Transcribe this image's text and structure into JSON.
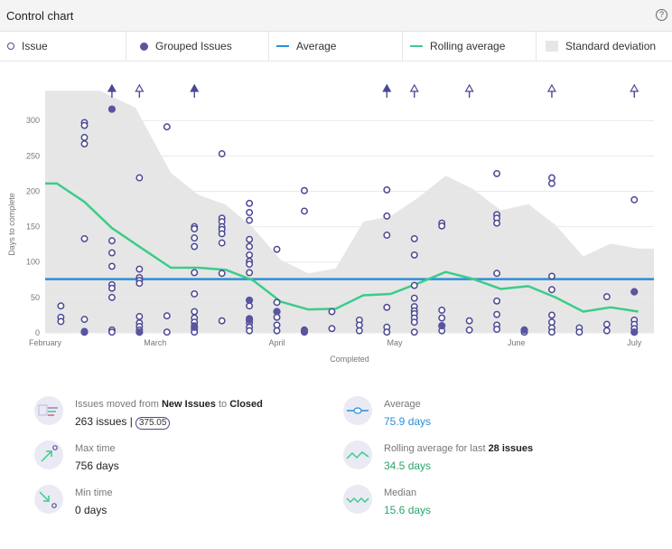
{
  "header": {
    "title": "Control chart",
    "help_icon": "?"
  },
  "legend": {
    "issue": "Issue",
    "grouped": "Grouped Issues",
    "average": "Average",
    "rolling": "Rolling average",
    "std": "Standard deviation"
  },
  "colors": {
    "issue": "#4a4894",
    "grouped": "#5a55a0",
    "average": "#2b8fd8",
    "rolling": "#3ccc8a",
    "std_band": "#e6e6e6",
    "grid": "#e9e9e9"
  },
  "chart_data": {
    "type": "scatter",
    "xlabel": "Completed",
    "ylabel": "Days to complete",
    "ylim": [
      0,
      345
    ],
    "yticks": [
      0,
      50,
      100,
      150,
      200,
      250,
      300
    ],
    "xlim": [
      0,
      155
    ],
    "x_unit": "days since Feb 1",
    "xticks": [
      {
        "label": "February",
        "x": 0
      },
      {
        "label": "March",
        "x": 28
      },
      {
        "label": "April",
        "x": 59
      },
      {
        "label": "May",
        "x": 89
      },
      {
        "label": "June",
        "x": 120
      },
      {
        "label": "July",
        "x": 150
      }
    ],
    "average": 75.9,
    "rolling_average": [
      [
        0,
        211
      ],
      [
        3,
        211
      ],
      [
        10,
        185
      ],
      [
        17,
        148
      ],
      [
        25,
        118
      ],
      [
        32,
        92
      ],
      [
        39,
        92
      ],
      [
        46,
        89
      ],
      [
        53,
        74
      ],
      [
        60,
        44
      ],
      [
        67,
        33
      ],
      [
        74,
        34
      ],
      [
        81,
        53
      ],
      [
        88,
        55
      ],
      [
        95,
        70
      ],
      [
        102,
        86
      ],
      [
        109,
        76
      ],
      [
        116,
        62
      ],
      [
        123,
        66
      ],
      [
        130,
        50
      ],
      [
        137,
        30
      ],
      [
        144,
        36
      ],
      [
        151,
        30
      ]
    ],
    "std_upper": [
      [
        0,
        342
      ],
      [
        14,
        342
      ],
      [
        23,
        318
      ],
      [
        32,
        226
      ],
      [
        39,
        195
      ],
      [
        46,
        181
      ],
      [
        53,
        148
      ],
      [
        60,
        103
      ],
      [
        67,
        84
      ],
      [
        74,
        91
      ],
      [
        81,
        157
      ],
      [
        88,
        165
      ],
      [
        95,
        191
      ],
      [
        102,
        222
      ],
      [
        109,
        203
      ],
      [
        116,
        173
      ],
      [
        123,
        182
      ],
      [
        130,
        152
      ],
      [
        137,
        108
      ],
      [
        144,
        126
      ],
      [
        151,
        119
      ],
      [
        155,
        119
      ]
    ],
    "std_lower": [
      [
        0,
        0
      ],
      [
        155,
        0
      ]
    ],
    "issues": [
      [
        4,
        38
      ],
      [
        4,
        22
      ],
      [
        4,
        16
      ],
      [
        10,
        297
      ],
      [
        10,
        293
      ],
      [
        10,
        276
      ],
      [
        10,
        267
      ],
      [
        10,
        133
      ],
      [
        10,
        19
      ],
      [
        10,
        2
      ],
      [
        17,
        130
      ],
      [
        17,
        113
      ],
      [
        17,
        94
      ],
      [
        17,
        68
      ],
      [
        17,
        63
      ],
      [
        17,
        50
      ],
      [
        17,
        4
      ],
      [
        17,
        1
      ],
      [
        24,
        219
      ],
      [
        24,
        90
      ],
      [
        24,
        78
      ],
      [
        24,
        74
      ],
      [
        24,
        70
      ],
      [
        24,
        23
      ],
      [
        24,
        14
      ],
      [
        24,
        9
      ],
      [
        24,
        4
      ],
      [
        24,
        1
      ],
      [
        31,
        291
      ],
      [
        31,
        24
      ],
      [
        31,
        1
      ],
      [
        38,
        150
      ],
      [
        38,
        147
      ],
      [
        38,
        134
      ],
      [
        38,
        122
      ],
      [
        38,
        85
      ],
      [
        38,
        55
      ],
      [
        38,
        30
      ],
      [
        38,
        21
      ],
      [
        38,
        15
      ],
      [
        38,
        10
      ],
      [
        38,
        5
      ],
      [
        38,
        1
      ],
      [
        45,
        253
      ],
      [
        45,
        162
      ],
      [
        45,
        157
      ],
      [
        45,
        150
      ],
      [
        45,
        146
      ],
      [
        45,
        140
      ],
      [
        45,
        127
      ],
      [
        45,
        84
      ],
      [
        45,
        17
      ],
      [
        52,
        183
      ],
      [
        52,
        170
      ],
      [
        52,
        159
      ],
      [
        52,
        132
      ],
      [
        52,
        122
      ],
      [
        52,
        110
      ],
      [
        52,
        101
      ],
      [
        52,
        97
      ],
      [
        52,
        85
      ],
      [
        52,
        46
      ],
      [
        52,
        38
      ],
      [
        52,
        20
      ],
      [
        52,
        14
      ],
      [
        52,
        8
      ],
      [
        52,
        3
      ],
      [
        59,
        118
      ],
      [
        59,
        43
      ],
      [
        59,
        30
      ],
      [
        59,
        22
      ],
      [
        59,
        11
      ],
      [
        59,
        3
      ],
      [
        66,
        201
      ],
      [
        66,
        172
      ],
      [
        66,
        4
      ],
      [
        66,
        1
      ],
      [
        73,
        30
      ],
      [
        73,
        6
      ],
      [
        80,
        18
      ],
      [
        80,
        11
      ],
      [
        80,
        3
      ],
      [
        87,
        202
      ],
      [
        87,
        165
      ],
      [
        87,
        138
      ],
      [
        87,
        36
      ],
      [
        87,
        8
      ],
      [
        87,
        1
      ],
      [
        94,
        133
      ],
      [
        94,
        110
      ],
      [
        94,
        67
      ],
      [
        94,
        49
      ],
      [
        94,
        37
      ],
      [
        94,
        31
      ],
      [
        94,
        27
      ],
      [
        94,
        21
      ],
      [
        94,
        15
      ],
      [
        94,
        1
      ],
      [
        101,
        155
      ],
      [
        101,
        151
      ],
      [
        101,
        32
      ],
      [
        101,
        21
      ],
      [
        101,
        10
      ],
      [
        101,
        3
      ],
      [
        108,
        17
      ],
      [
        108,
        4
      ],
      [
        115,
        225
      ],
      [
        115,
        167
      ],
      [
        115,
        162
      ],
      [
        115,
        155
      ],
      [
        115,
        84
      ],
      [
        115,
        45
      ],
      [
        115,
        26
      ],
      [
        115,
        11
      ],
      [
        115,
        5
      ],
      [
        122,
        3
      ],
      [
        122,
        1
      ],
      [
        129,
        219
      ],
      [
        129,
        211
      ],
      [
        129,
        80
      ],
      [
        129,
        61
      ],
      [
        129,
        25
      ],
      [
        129,
        15
      ],
      [
        129,
        7
      ],
      [
        129,
        1
      ],
      [
        136,
        7
      ],
      [
        136,
        1
      ],
      [
        143,
        51
      ],
      [
        143,
        12
      ],
      [
        143,
        3
      ],
      [
        150,
        188
      ],
      [
        150,
        58
      ],
      [
        150,
        18
      ],
      [
        150,
        12
      ],
      [
        150,
        6
      ],
      [
        150,
        1
      ]
    ],
    "grouped": [
      [
        17,
        316
      ],
      [
        10,
        1
      ],
      [
        24,
        1
      ],
      [
        38,
        8
      ],
      [
        52,
        18
      ],
      [
        52,
        46
      ],
      [
        59,
        30
      ],
      [
        66,
        2
      ],
      [
        101,
        10
      ],
      [
        122,
        4
      ],
      [
        150,
        1
      ],
      [
        150,
        58
      ]
    ],
    "outliers": [
      {
        "x": 17,
        "filled": true
      },
      {
        "x": 24,
        "filled": false
      },
      {
        "x": 38,
        "filled": true
      },
      {
        "x": 87,
        "filled": true
      },
      {
        "x": 94,
        "filled": false
      },
      {
        "x": 108,
        "filled": false
      },
      {
        "x": 129,
        "filled": false
      },
      {
        "x": 150,
        "filled": false
      }
    ]
  },
  "stats": {
    "moved": {
      "prefix": "Issues moved from ",
      "from": "New Issues",
      "mid": " to ",
      "to": "Closed",
      "count": "263 issues |",
      "pill": "375.05"
    },
    "max": {
      "label": "Max time",
      "value": "756 days"
    },
    "min": {
      "label": "Min time",
      "value": "0 days"
    },
    "average": {
      "label": "Average",
      "value": "75.9 days"
    },
    "rolling": {
      "prefix": "Rolling average for last ",
      "count": "28 issues",
      "value": "34.5 days"
    },
    "median": {
      "label": "Median",
      "value": "15.6 days"
    }
  }
}
